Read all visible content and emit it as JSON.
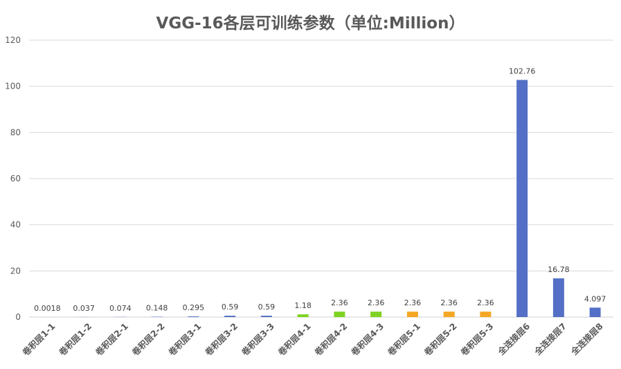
{
  "chart_data": {
    "type": "bar",
    "title": "VGG-16各层可训练参数（单位:Million）",
    "categories": [
      "卷积层1-1",
      "卷积层1-2",
      "卷积层2-1",
      "卷积层2-2",
      "卷积层3-1",
      "卷积层3-2",
      "卷积层3-3",
      "卷积层4-1",
      "卷积层4-2",
      "卷积层4-3",
      "卷积层5-1",
      "卷积层5-2",
      "卷积层5-3",
      "全连接层6",
      "全连接层7",
      "全连接层8"
    ],
    "values": [
      0.0018,
      0.037,
      0.074,
      0.148,
      0.295,
      0.59,
      0.59,
      1.18,
      2.36,
      2.36,
      2.36,
      2.36,
      2.36,
      102.76,
      16.78,
      4.097
    ],
    "data_labels": [
      "0.0018",
      "0.037",
      "0.074",
      "0.148",
      "0.295",
      "0.59",
      "0.59",
      "1.18",
      "2.36",
      "2.36",
      "2.36",
      "2.36",
      "2.36",
      "102.76",
      "16.78",
      "4.097"
    ],
    "bar_colors": [
      "#5470C6",
      "#5470C6",
      "#5470C6",
      "#5470C6",
      "#5470C6",
      "#5470C6",
      "#5470C6",
      "#7ED321",
      "#7ED321",
      "#7ED321",
      "#F5A623",
      "#F5A623",
      "#F5A623",
      "#5470C6",
      "#5470C6",
      "#5470C6"
    ],
    "yticks": [
      "0",
      "20",
      "40",
      "60",
      "80",
      "100",
      "120"
    ],
    "ylim": [
      0,
      120
    ],
    "xlabel": "",
    "ylabel": "",
    "grid": true,
    "legend": "none"
  }
}
